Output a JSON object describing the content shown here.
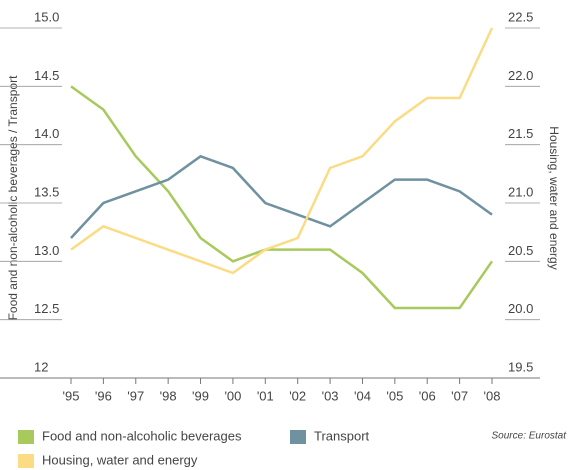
{
  "chart_data": {
    "type": "line",
    "y_label": "Food and non-alcoholic beverages / Transport",
    "y2_label": "Housing, water and energy",
    "source": "Source: Eurostat",
    "categories": [
      "'95",
      "'96",
      "'97",
      "'98",
      "'99",
      "'00",
      "'01",
      "'02",
      "'03",
      "'04",
      "'05",
      "'06",
      "'07",
      "'08"
    ],
    "ylim": [
      12,
      15
    ],
    "yticks": [
      12,
      12.5,
      {
        "value": 13,
        "label": "13.0"
      },
      13.5,
      {
        "value": 14,
        "label": "14.0"
      },
      14.5,
      {
        "value": 15,
        "label": "15.0"
      }
    ],
    "y2lim": [
      19.5,
      22.5
    ],
    "y2ticks": [
      19.5,
      {
        "value": 20,
        "label": "20.0"
      },
      20.5,
      {
        "value": 21,
        "label": "21.0"
      },
      21.5,
      {
        "value": 22,
        "label": "22.0"
      },
      22.5
    ],
    "series": [
      {
        "name": "Food and non-alcoholic beverages",
        "color": "#a8c95c",
        "values": [
          14.5,
          14.3,
          13.9,
          13.6,
          13.2,
          13.0,
          13.1,
          13.1,
          13.1,
          12.9,
          12.6,
          12.6,
          12.6,
          13.0
        ]
      },
      {
        "name": "Transport",
        "color": "#6f91a0",
        "values": [
          13.2,
          13.5,
          13.6,
          13.7,
          13.9,
          13.8,
          13.5,
          13.4,
          13.3,
          13.5,
          13.7,
          13.7,
          13.6,
          13.4
        ]
      },
      {
        "name": "Housing, water and energy",
        "color": "#fbdc84",
        "axis": "y2",
        "values": [
          20.6,
          20.8,
          20.7,
          20.6,
          20.5,
          20.4,
          20.6,
          20.7,
          21.3,
          21.4,
          21.7,
          21.9,
          21.9,
          22.5
        ]
      }
    ]
  }
}
